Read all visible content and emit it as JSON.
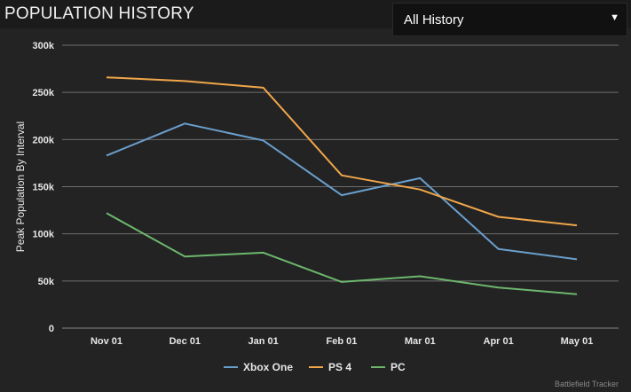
{
  "header": {
    "title": "POPULATION HISTORY",
    "filter": {
      "selected": "All History",
      "caret": "▼"
    }
  },
  "chart_data": {
    "type": "line",
    "title": "",
    "xlabel": "",
    "ylabel": "Peak Population By Interval",
    "categories": [
      "Nov 01",
      "Dec 01",
      "Jan 01",
      "Feb 01",
      "Mar 01",
      "Apr 01",
      "May 01"
    ],
    "ylim": [
      0,
      300000
    ],
    "yticks": [
      0,
      50000,
      100000,
      150000,
      200000,
      250000,
      300000
    ],
    "ytick_labels": [
      "0",
      "50k",
      "100k",
      "150k",
      "200k",
      "250k",
      "300k"
    ],
    "grid": true,
    "legend_position": "bottom",
    "series": [
      {
        "name": "Xbox One",
        "color": "#6a9fcd",
        "values": [
          183000,
          217000,
          199000,
          141000,
          159000,
          84000,
          73000
        ]
      },
      {
        "name": "PS 4",
        "color": "#f0a64a",
        "values": [
          266000,
          262000,
          255000,
          162000,
          147000,
          118000,
          109000
        ]
      },
      {
        "name": "PC",
        "color": "#6db76d",
        "values": [
          122000,
          76000,
          80000,
          49000,
          55000,
          43000,
          36000
        ]
      }
    ]
  },
  "footer": {
    "credit": "Battlefield Tracker"
  }
}
